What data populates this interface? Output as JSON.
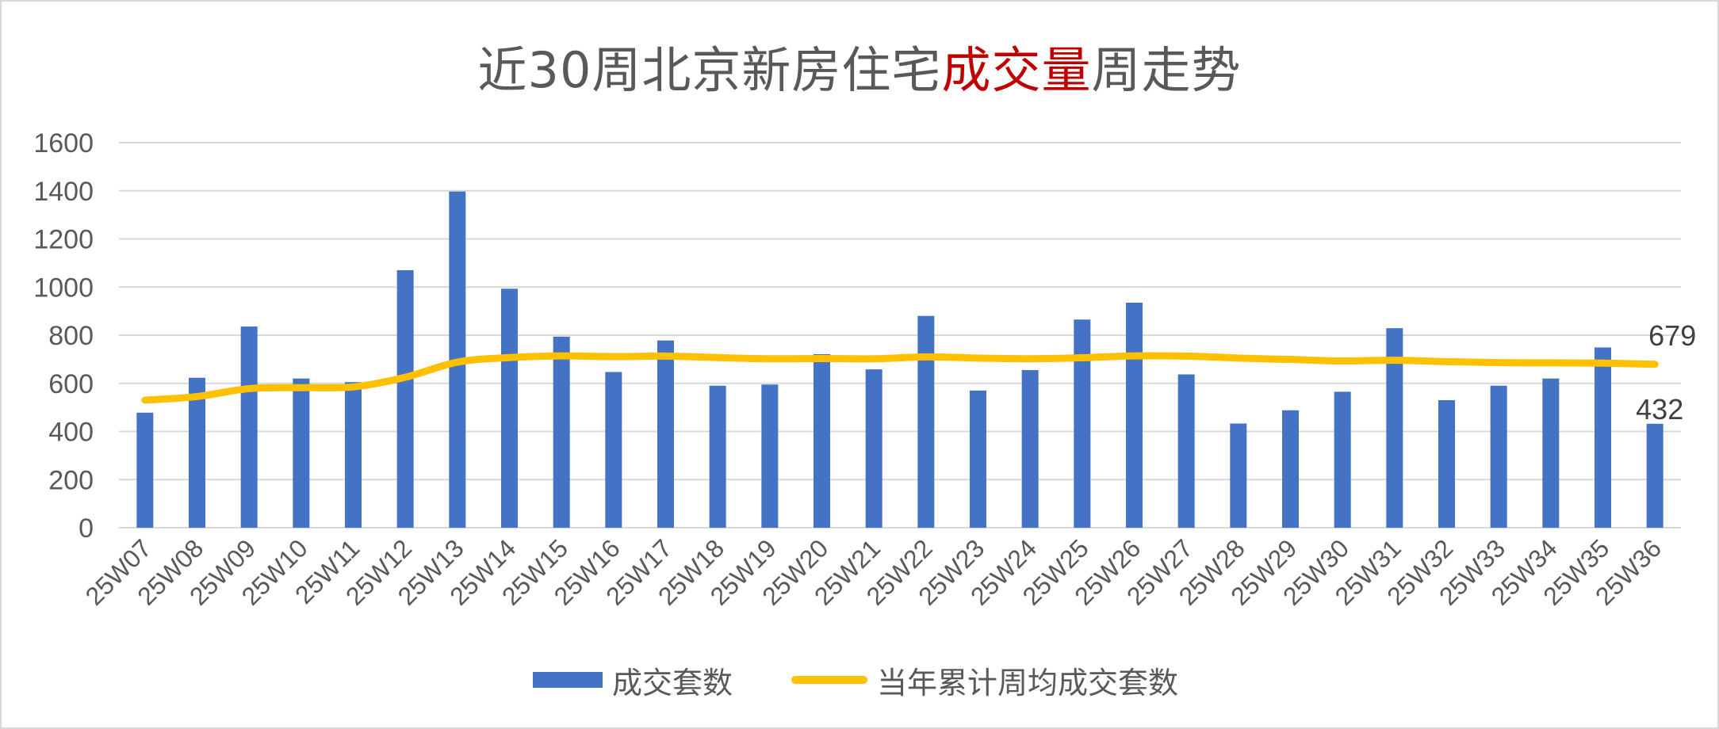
{
  "title": {
    "part1": "近30周北京新房住宅",
    "part2": "成交量",
    "part3": "周走势"
  },
  "colors": {
    "bar": "#4472c4",
    "line": "#ffc000",
    "grid": "#d9d9d9",
    "highlight": "#c00000",
    "text": "#595959"
  },
  "legend": {
    "bar_label": "成交套数",
    "line_label": "当年累计周均成交套数"
  },
  "chart_data": {
    "type": "bar",
    "title": "近30周北京新房住宅成交量周走势",
    "xlabel": "",
    "ylabel": "",
    "ylim": [
      0,
      1600
    ],
    "yticks": [
      0,
      200,
      400,
      600,
      800,
      1000,
      1200,
      1400,
      1600
    ],
    "grid": true,
    "legend_position": "bottom",
    "categories": [
      "25W07",
      "25W08",
      "25W09",
      "25W10",
      "25W11",
      "25W12",
      "25W13",
      "25W14",
      "25W15",
      "25W16",
      "25W17",
      "25W18",
      "25W19",
      "25W20",
      "25W21",
      "25W22",
      "25W23",
      "25W24",
      "25W25",
      "25W26",
      "25W27",
      "25W28",
      "25W29",
      "25W30",
      "25W31",
      "25W32",
      "25W33",
      "25W34",
      "25W35",
      "25W36"
    ],
    "series": [
      {
        "name": "成交套数",
        "type": "bar",
        "values": [
          478,
          623,
          836,
          620,
          605,
          1070,
          1397,
          993,
          794,
          647,
          778,
          590,
          595,
          721,
          658,
          880,
          570,
          655,
          865,
          935,
          637,
          433,
          488,
          565,
          829,
          530,
          590,
          620,
          749,
          432
        ]
      },
      {
        "name": "当年累计周均成交套数",
        "type": "line",
        "values": [
          530,
          545,
          578,
          582,
          585,
          625,
          688,
          707,
          714,
          711,
          713,
          707,
          702,
          703,
          702,
          710,
          705,
          702,
          706,
          714,
          713,
          705,
          699,
          693,
          696,
          690,
          686,
          685,
          684,
          679
        ]
      }
    ],
    "data_labels": [
      {
        "series": "当年累计周均成交套数",
        "category": "25W36",
        "text": "679"
      },
      {
        "series": "成交套数",
        "category": "25W36",
        "text": "432"
      }
    ]
  }
}
